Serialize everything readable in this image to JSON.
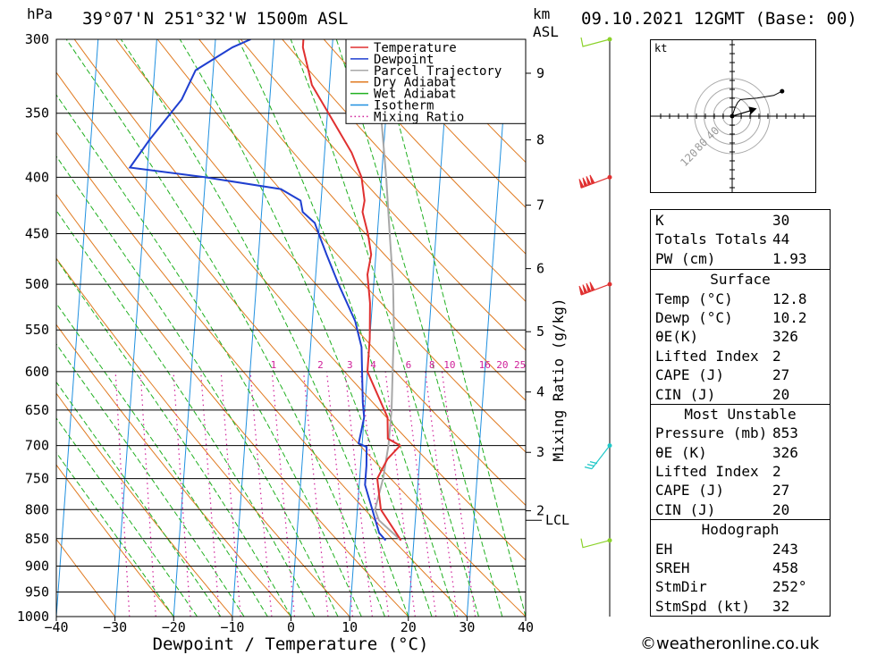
{
  "header": {
    "location": "39°07'N 251°32'W 1500m ASL",
    "datetime": "09.10.2021 12GMT (Base: 00)",
    "pressure_unit": "hPa",
    "height_unit_1": "km",
    "height_unit_2": "ASL"
  },
  "footer": {
    "copyright": "©weatheronline.co.uk"
  },
  "chart_data": {
    "type": "line",
    "xlabel": "Dewpoint / Temperature (°C)",
    "ylabel": "hPa",
    "ylabel_right": "Mixing Ratio (g/kg)",
    "xlim": [
      -40,
      40
    ],
    "ylim": [
      1000,
      300
    ],
    "x_ticks": [
      -40,
      -30,
      -20,
      -10,
      0,
      10,
      20,
      30,
      40
    ],
    "x_tick_labels": [
      "−40",
      "−30",
      "−20",
      "−10",
      "0",
      "10",
      "20",
      "30",
      "40"
    ],
    "pressure_levels": [
      300,
      350,
      400,
      450,
      500,
      550,
      600,
      650,
      700,
      750,
      800,
      850,
      900,
      950,
      1000
    ],
    "height_km_ticks": [
      {
        "km": "2",
        "p": 802
      },
      {
        "km": "3",
        "p": 710
      },
      {
        "km": "4",
        "p": 626
      },
      {
        "km": "5",
        "p": 552
      },
      {
        "km": "6",
        "p": 484
      },
      {
        "km": "7",
        "p": 424
      },
      {
        "km": "8",
        "p": 370
      },
      {
        "km": "9",
        "p": 322
      }
    ],
    "lcl": {
      "label": "LCL",
      "p": 818
    },
    "mixing_ratio_labels": [
      {
        "label": "1",
        "t": -6
      },
      {
        "label": "2",
        "t": 2
      },
      {
        "label": "3",
        "t": 7
      },
      {
        "label": "4",
        "t": 11
      },
      {
        "label": "6",
        "t": 17
      },
      {
        "label": "8",
        "t": 21
      },
      {
        "label": "10",
        "t": 24
      },
      {
        "label": "16",
        "t": 30
      },
      {
        "label": "20",
        "t": 33
      },
      {
        "label": "25",
        "t": 36
      }
    ],
    "legend": {
      "position": "top-right",
      "entries": [
        {
          "name": "Temperature",
          "color": "#e03030",
          "style": "solid"
        },
        {
          "name": "Dewpoint",
          "color": "#1f3fd0",
          "style": "solid"
        },
        {
          "name": "Parcel Trajectory",
          "color": "#a8a8a8",
          "style": "solid"
        },
        {
          "name": "Dry Adiabat",
          "color": "#e07a20",
          "style": "solid"
        },
        {
          "name": "Wet Adiabat",
          "color": "#20b020",
          "style": "solid"
        },
        {
          "name": "Isotherm",
          "color": "#2090e0",
          "style": "solid"
        },
        {
          "name": "Mixing Ratio",
          "color": "#d0209a",
          "style": "dotted"
        }
      ]
    },
    "series": [
      {
        "name": "Temperature",
        "color": "#e03030",
        "points": [
          [
            17.8,
            853
          ],
          [
            14,
            800
          ],
          [
            13,
            750
          ],
          [
            14.5,
            720
          ],
          [
            16.5,
            700
          ],
          [
            14.3,
            690
          ],
          [
            14,
            660
          ],
          [
            10,
            600
          ],
          [
            10,
            560
          ],
          [
            9.6,
            520
          ],
          [
            8.8,
            490
          ],
          [
            9.2,
            470
          ],
          [
            8.4,
            450
          ],
          [
            7.2,
            430
          ],
          [
            7.4,
            420
          ],
          [
            6.6,
            400
          ],
          [
            4.6,
            380
          ],
          [
            -3,
            330
          ],
          [
            -5,
            305
          ],
          [
            -5,
            300
          ]
        ]
      },
      {
        "name": "Dewpoint",
        "color": "#1f3fd0",
        "points": [
          [
            15.2,
            853
          ],
          [
            14,
            840
          ],
          [
            11,
            760
          ],
          [
            11,
            730
          ],
          [
            10.8,
            702
          ],
          [
            9.4,
            697
          ],
          [
            10,
            660
          ],
          [
            9.6,
            640
          ],
          [
            8.7,
            570
          ],
          [
            8,
            555
          ],
          [
            7.3,
            540
          ],
          [
            4,
            500
          ],
          [
            1.6,
            470
          ],
          [
            0,
            450
          ],
          [
            -0.8,
            440
          ],
          [
            -3,
            430
          ],
          [
            -3.5,
            420
          ],
          [
            -7,
            410
          ],
          [
            -20,
            400
          ],
          [
            -33,
            392
          ],
          [
            -30,
            370
          ],
          [
            -25,
            340
          ],
          [
            -23,
            320
          ],
          [
            -17,
            305
          ],
          [
            -14,
            300
          ]
        ]
      },
      {
        "name": "Parcel Trajectory",
        "color": "#a8a8a8",
        "points": [
          [
            17.8,
            853
          ],
          [
            13.8,
            818
          ],
          [
            13,
            800
          ],
          [
            14,
            750
          ],
          [
            14.5,
            700
          ],
          [
            14.6,
            650
          ],
          [
            14.3,
            600
          ],
          [
            14,
            550
          ],
          [
            13.3,
            500
          ],
          [
            12.1,
            450
          ],
          [
            10.8,
            400
          ],
          [
            9.1,
            350
          ],
          [
            6.8,
            300
          ]
        ]
      }
    ],
    "wind_barbs": [
      {
        "p": 300,
        "kind": "short",
        "color": "#8bd22a"
      },
      {
        "p": 400,
        "kind": "pennant",
        "color": "#e03030"
      },
      {
        "p": 500,
        "kind": "pennant",
        "color": "#e03030"
      },
      {
        "p": 700,
        "kind": "long",
        "color": "#20c8c8"
      },
      {
        "p": 853,
        "kind": "short",
        "color": "#8bd22a"
      }
    ]
  },
  "hodograph": {
    "unit": "kt",
    "ring_labels": [
      "40",
      "80",
      "120"
    ],
    "points": [
      [
        0,
        0
      ],
      [
        2,
        6
      ],
      [
        4,
        10
      ],
      [
        6,
        12
      ],
      [
        18,
        13
      ],
      [
        30,
        15
      ],
      [
        36,
        18
      ]
    ],
    "storm_motion": [
      10,
      3
    ]
  },
  "indices": {
    "general": [
      {
        "label": "K",
        "value": "30"
      },
      {
        "label": "Totals Totals",
        "value": "44"
      },
      {
        "label": "PW (cm)",
        "value": "1.93"
      }
    ],
    "surface": {
      "title": "Surface",
      "rows": [
        {
          "label": "Temp (°C)",
          "value": "12.8"
        },
        {
          "label": "Dewp (°C)",
          "value": "10.2"
        },
        {
          "label": "θE(K)",
          "value": "326"
        },
        {
          "label": "Lifted Index",
          "value": "2"
        },
        {
          "label": "CAPE (J)",
          "value": "27"
        },
        {
          "label": "CIN (J)",
          "value": "20"
        }
      ]
    },
    "most_unstable": {
      "title": "Most Unstable",
      "rows": [
        {
          "label": "Pressure (mb)",
          "value": "853"
        },
        {
          "label": "θE (K)",
          "value": "326"
        },
        {
          "label": "Lifted Index",
          "value": "2"
        },
        {
          "label": "CAPE (J)",
          "value": "27"
        },
        {
          "label": "CIN (J)",
          "value": "20"
        }
      ]
    },
    "hodograph": {
      "title": "Hodograph",
      "rows": [
        {
          "label": "EH",
          "value": "243"
        },
        {
          "label": "SREH",
          "value": "458"
        },
        {
          "label": "StmDir",
          "value": "252°"
        },
        {
          "label": "StmSpd (kt)",
          "value": "32"
        }
      ]
    }
  }
}
